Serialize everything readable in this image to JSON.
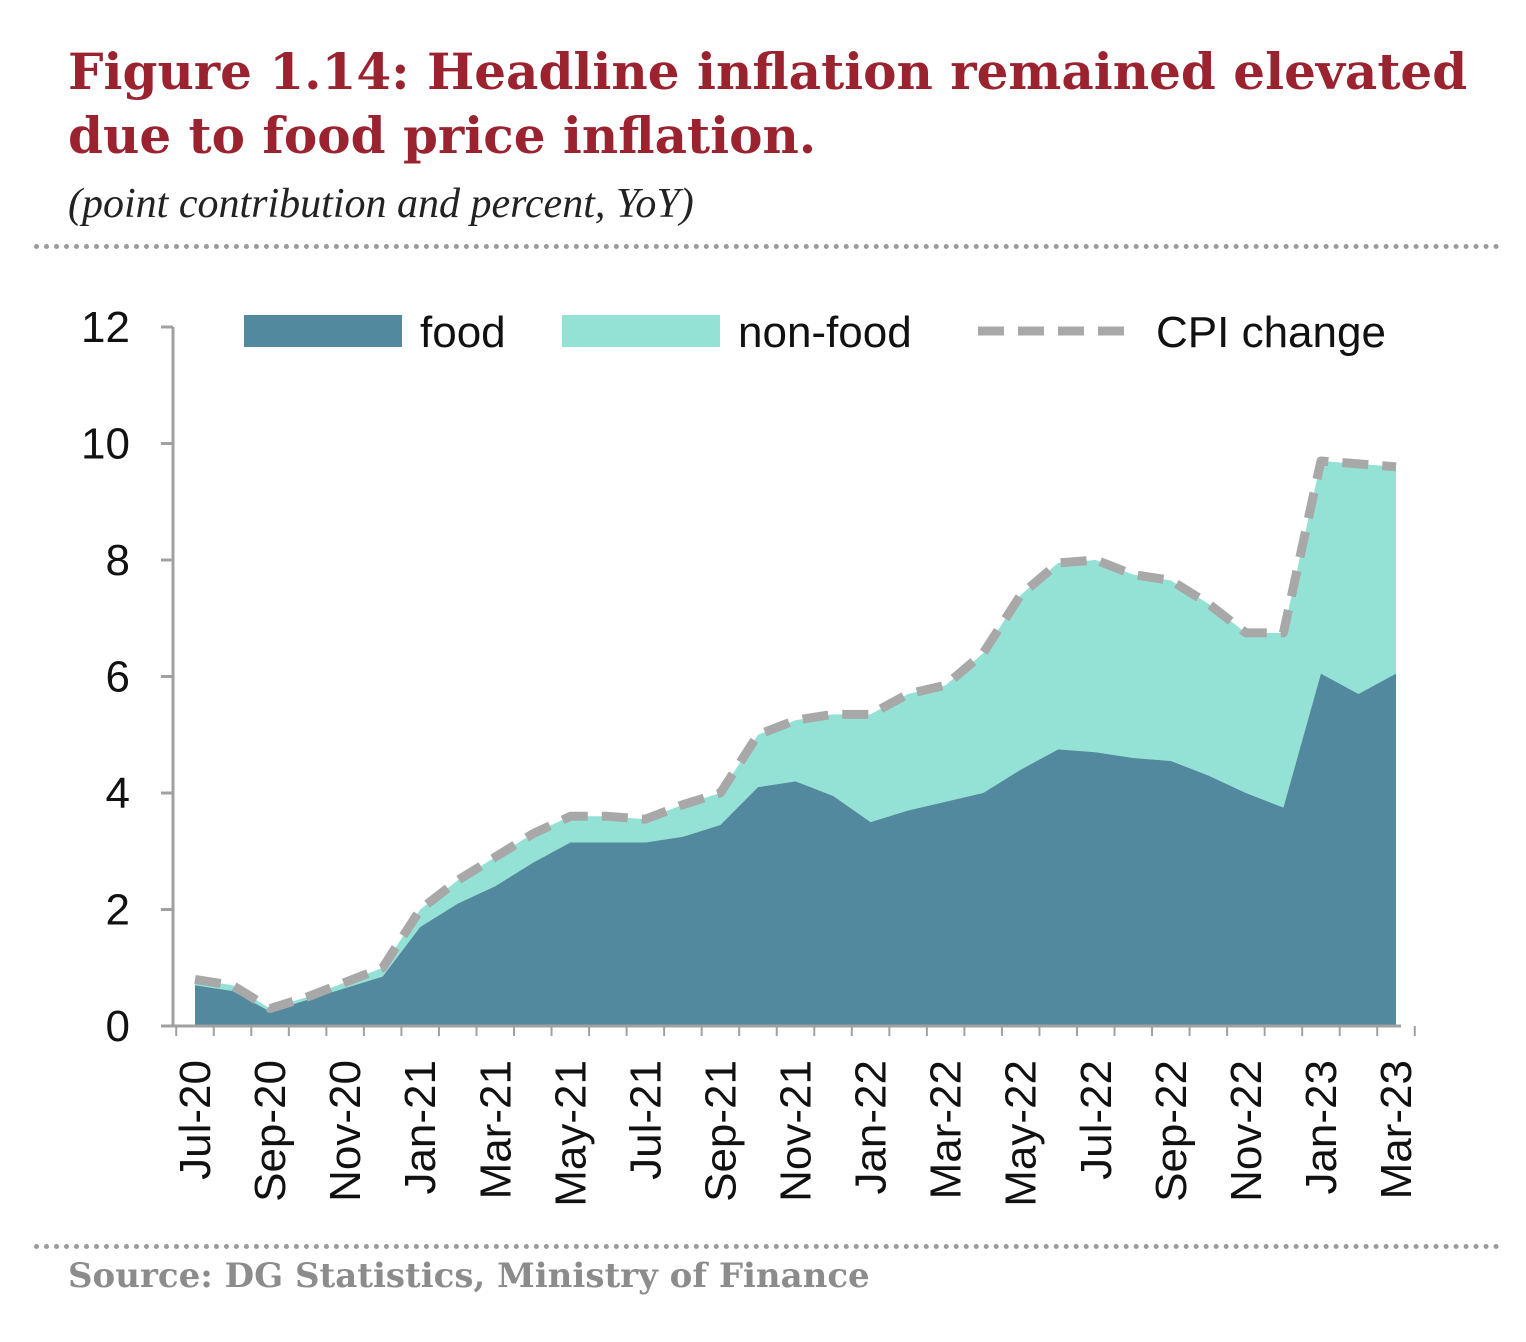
{
  "figure": {
    "title": "Figure 1.14: Headline inflation remained elevated due to food price inflation.",
    "subtitle": "(point contribution and percent, YoY)",
    "source": "Source: DG Statistics, Ministry of Finance"
  },
  "colors": {
    "title": "#9b2330",
    "food": "#53899f",
    "non_food": "#93e2d5",
    "cpi_line": "#a8a8a8",
    "axis": "#a0a0a0",
    "source": "#8c8c8c"
  },
  "chart_data": {
    "type": "area",
    "stacked": true,
    "title": "",
    "xlabel": "",
    "ylabel": "",
    "ylim": [
      0,
      12
    ],
    "yticks": [
      0,
      2,
      4,
      6,
      8,
      10,
      12
    ],
    "grid": false,
    "legend": "top",
    "x": [
      "Jul-20",
      "Aug-20",
      "Sep-20",
      "Oct-20",
      "Nov-20",
      "Dec-20",
      "Jan-21",
      "Feb-21",
      "Mar-21",
      "Apr-21",
      "May-21",
      "Jun-21",
      "Jul-21",
      "Aug-21",
      "Sep-21",
      "Oct-21",
      "Nov-21",
      "Dec-21",
      "Jan-22",
      "Feb-22",
      "Mar-22",
      "Apr-22",
      "May-22",
      "Jun-22",
      "Jul-22",
      "Aug-22",
      "Sep-22",
      "Oct-22",
      "Nov-22",
      "Dec-22",
      "Jan-23",
      "Feb-23",
      "Mar-23"
    ],
    "x_tick_labels": [
      "Jul-20",
      "Sep-20",
      "Nov-20",
      "Jan-21",
      "Mar-21",
      "May-21",
      "Jul-21",
      "Sep-21",
      "Nov-21",
      "Jan-22",
      "Mar-22",
      "May-22",
      "Jul-22",
      "Sep-22",
      "Nov-22",
      "Jan-23",
      "Mar-23"
    ],
    "series": [
      {
        "name": "food",
        "kind": "area",
        "values": [
          0.7,
          0.6,
          0.25,
          0.45,
          0.65,
          0.85,
          1.7,
          2.1,
          2.4,
          2.8,
          3.15,
          3.15,
          3.15,
          3.25,
          3.45,
          4.1,
          4.2,
          3.95,
          3.5,
          3.7,
          3.85,
          4.0,
          4.4,
          4.75,
          4.7,
          4.6,
          4.55,
          4.3,
          4.0,
          3.75,
          6.05,
          5.7,
          6.05
        ]
      },
      {
        "name": "non-food",
        "kind": "area",
        "values": [
          0.1,
          0.1,
          0.05,
          0.05,
          0.1,
          0.15,
          0.3,
          0.4,
          0.5,
          0.5,
          0.45,
          0.45,
          0.4,
          0.55,
          0.55,
          0.9,
          1.05,
          1.4,
          1.85,
          2.0,
          2.0,
          2.4,
          3.0,
          3.2,
          3.3,
          3.15,
          3.1,
          2.95,
          2.75,
          3.0,
          3.65,
          3.95,
          3.55
        ]
      },
      {
        "name": "CPI change",
        "kind": "line",
        "style": "dashed",
        "values": [
          0.8,
          0.7,
          0.3,
          0.5,
          0.75,
          1.0,
          2.0,
          2.5,
          2.9,
          3.3,
          3.6,
          3.6,
          3.55,
          3.8,
          4.0,
          5.0,
          5.25,
          5.35,
          5.35,
          5.7,
          5.85,
          6.4,
          7.4,
          7.95,
          8.0,
          7.75,
          7.65,
          7.25,
          6.75,
          6.75,
          9.7,
          9.65,
          9.6
        ]
      }
    ]
  }
}
